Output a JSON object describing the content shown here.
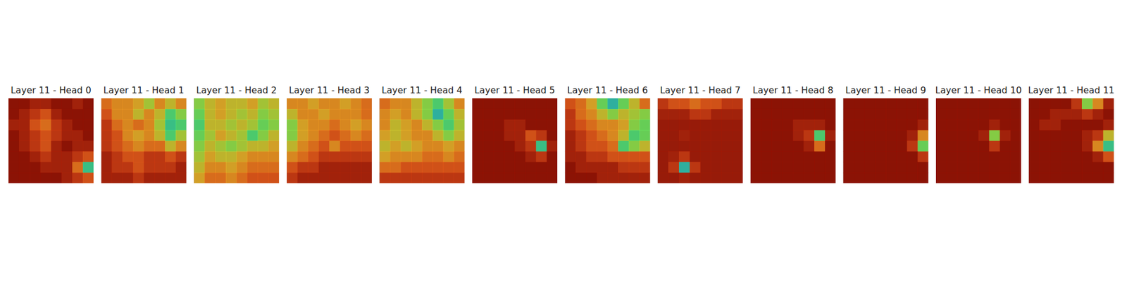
{
  "chart_data": [
    {
      "type": "heatmap",
      "title": "Layer 11 - Head 0",
      "tick_labels": false,
      "zlim": [
        0,
        1
      ],
      "z": [
        [
          0.95,
          0.95,
          0.9,
          0.9,
          0.95,
          0.95,
          0.9,
          0.95
        ],
        [
          0.95,
          0.9,
          0.85,
          0.8,
          0.9,
          0.95,
          0.95,
          0.95
        ],
        [
          0.9,
          0.9,
          0.8,
          0.75,
          0.85,
          0.9,
          0.95,
          0.95
        ],
        [
          0.95,
          0.9,
          0.85,
          0.8,
          0.85,
          0.9,
          0.9,
          0.95
        ],
        [
          0.95,
          0.9,
          0.85,
          0.8,
          0.9,
          0.95,
          0.9,
          0.9
        ],
        [
          0.95,
          0.95,
          0.9,
          0.85,
          0.9,
          0.9,
          0.85,
          0.8
        ],
        [
          0.95,
          0.95,
          0.95,
          0.9,
          0.9,
          0.9,
          0.75,
          0.35
        ],
        [
          0.95,
          0.95,
          0.95,
          0.95,
          0.95,
          0.9,
          0.85,
          0.8
        ]
      ]
    },
    {
      "type": "heatmap",
      "title": "Layer 11 - Head 1",
      "tick_labels": false,
      "zlim": [
        0,
        1
      ],
      "z": [
        [
          0.75,
          0.7,
          0.7,
          0.65,
          0.55,
          0.7,
          0.6,
          0.7
        ],
        [
          0.8,
          0.7,
          0.7,
          0.6,
          0.7,
          0.6,
          0.4,
          0.5
        ],
        [
          0.85,
          0.75,
          0.7,
          0.75,
          0.7,
          0.55,
          0.35,
          0.4
        ],
        [
          0.85,
          0.8,
          0.7,
          0.65,
          0.7,
          0.6,
          0.4,
          0.55
        ],
        [
          0.85,
          0.8,
          0.75,
          0.7,
          0.75,
          0.75,
          0.6,
          0.7
        ],
        [
          0.9,
          0.85,
          0.8,
          0.8,
          0.85,
          0.85,
          0.8,
          0.85
        ],
        [
          0.9,
          0.85,
          0.85,
          0.8,
          0.85,
          0.85,
          0.85,
          0.9
        ],
        [
          0.9,
          0.9,
          0.9,
          0.85,
          0.9,
          0.9,
          0.9,
          0.9
        ]
      ]
    },
    {
      "type": "heatmap",
      "title": "Layer 11 - Head 2",
      "tick_labels": false,
      "zlim": [
        0,
        1
      ],
      "z": [
        [
          0.5,
          0.6,
          0.65,
          0.6,
          0.6,
          0.65,
          0.55,
          0.6
        ],
        [
          0.45,
          0.6,
          0.65,
          0.6,
          0.55,
          0.6,
          0.5,
          0.55
        ],
        [
          0.4,
          0.6,
          0.6,
          0.55,
          0.6,
          0.55,
          0.45,
          0.5
        ],
        [
          0.45,
          0.55,
          0.65,
          0.6,
          0.55,
          0.4,
          0.5,
          0.6
        ],
        [
          0.5,
          0.6,
          0.55,
          0.5,
          0.55,
          0.6,
          0.6,
          0.65
        ],
        [
          0.55,
          0.65,
          0.6,
          0.6,
          0.65,
          0.7,
          0.7,
          0.7
        ],
        [
          0.6,
          0.7,
          0.7,
          0.65,
          0.7,
          0.75,
          0.75,
          0.75
        ],
        [
          0.65,
          0.75,
          0.75,
          0.7,
          0.75,
          0.8,
          0.8,
          0.8
        ]
      ]
    },
    {
      "type": "heatmap",
      "title": "Layer 11 - Head 3",
      "tick_labels": false,
      "zlim": [
        0,
        1
      ],
      "z": [
        [
          0.7,
          0.7,
          0.65,
          0.7,
          0.7,
          0.65,
          0.7,
          0.75
        ],
        [
          0.6,
          0.7,
          0.7,
          0.65,
          0.7,
          0.7,
          0.7,
          0.75
        ],
        [
          0.5,
          0.65,
          0.7,
          0.7,
          0.75,
          0.7,
          0.65,
          0.7
        ],
        [
          0.5,
          0.65,
          0.7,
          0.75,
          0.8,
          0.75,
          0.7,
          0.75
        ],
        [
          0.6,
          0.7,
          0.75,
          0.8,
          0.7,
          0.8,
          0.8,
          0.8
        ],
        [
          0.7,
          0.75,
          0.8,
          0.85,
          0.85,
          0.85,
          0.85,
          0.85
        ],
        [
          0.8,
          0.85,
          0.85,
          0.9,
          0.9,
          0.9,
          0.9,
          0.9
        ],
        [
          0.85,
          0.9,
          0.9,
          0.9,
          0.9,
          0.9,
          0.9,
          0.9
        ]
      ]
    },
    {
      "type": "heatmap",
      "title": "Layer 11 - Head 4",
      "tick_labels": false,
      "zlim": [
        0,
        1
      ],
      "z": [
        [
          0.75,
          0.7,
          0.7,
          0.6,
          0.5,
          0.4,
          0.55,
          0.7
        ],
        [
          0.7,
          0.65,
          0.7,
          0.6,
          0.5,
          0.3,
          0.45,
          0.6
        ],
        [
          0.7,
          0.6,
          0.65,
          0.7,
          0.6,
          0.5,
          0.4,
          0.55
        ],
        [
          0.65,
          0.6,
          0.65,
          0.7,
          0.7,
          0.6,
          0.5,
          0.6
        ],
        [
          0.6,
          0.65,
          0.6,
          0.65,
          0.7,
          0.7,
          0.65,
          0.7
        ],
        [
          0.65,
          0.7,
          0.7,
          0.7,
          0.75,
          0.75,
          0.7,
          0.75
        ],
        [
          0.75,
          0.75,
          0.8,
          0.8,
          0.8,
          0.8,
          0.8,
          0.8
        ],
        [
          0.85,
          0.85,
          0.85,
          0.85,
          0.85,
          0.85,
          0.85,
          0.85
        ]
      ]
    },
    {
      "type": "heatmap",
      "title": "Layer 11 - Head 5",
      "tick_labels": false,
      "zlim": [
        0,
        1
      ],
      "z": [
        [
          0.95,
          0.95,
          0.95,
          0.95,
          0.95,
          0.95,
          0.95,
          0.95
        ],
        [
          0.95,
          0.95,
          0.95,
          0.95,
          0.95,
          0.95,
          0.95,
          0.95
        ],
        [
          0.95,
          0.95,
          0.95,
          0.9,
          0.9,
          0.95,
          0.95,
          0.95
        ],
        [
          0.95,
          0.95,
          0.95,
          0.9,
          0.9,
          0.8,
          0.85,
          0.95
        ],
        [
          0.95,
          0.95,
          0.95,
          0.95,
          0.9,
          0.85,
          0.35,
          0.9
        ],
        [
          0.95,
          0.95,
          0.95,
          0.95,
          0.95,
          0.9,
          0.85,
          0.95
        ],
        [
          0.95,
          0.95,
          0.95,
          0.95,
          0.95,
          0.95,
          0.95,
          0.95
        ],
        [
          0.95,
          0.95,
          0.95,
          0.95,
          0.95,
          0.95,
          0.95,
          0.95
        ]
      ]
    },
    {
      "type": "heatmap",
      "title": "Layer 11 - Head 6",
      "tick_labels": false,
      "zlim": [
        0,
        1
      ],
      "z": [
        [
          0.8,
          0.75,
          0.65,
          0.45,
          0.3,
          0.45,
          0.6,
          0.75
        ],
        [
          0.85,
          0.75,
          0.7,
          0.6,
          0.5,
          0.6,
          0.55,
          0.5
        ],
        [
          0.85,
          0.8,
          0.75,
          0.7,
          0.7,
          0.65,
          0.5,
          0.45
        ],
        [
          0.9,
          0.85,
          0.8,
          0.75,
          0.7,
          0.6,
          0.4,
          0.45
        ],
        [
          0.9,
          0.85,
          0.8,
          0.8,
          0.75,
          0.4,
          0.5,
          0.6
        ],
        [
          0.9,
          0.9,
          0.85,
          0.85,
          0.8,
          0.8,
          0.8,
          0.8
        ],
        [
          0.95,
          0.9,
          0.9,
          0.9,
          0.9,
          0.85,
          0.85,
          0.85
        ],
        [
          0.95,
          0.95,
          0.95,
          0.9,
          0.9,
          0.9,
          0.9,
          0.9
        ]
      ]
    },
    {
      "type": "heatmap",
      "title": "Layer 11 - Head 7",
      "tick_labels": false,
      "zlim": [
        0,
        1
      ],
      "z": [
        [
          0.85,
          0.8,
          0.8,
          0.75,
          0.8,
          0.8,
          0.85,
          0.85
        ],
        [
          0.9,
          0.9,
          0.9,
          0.85,
          0.85,
          0.9,
          0.9,
          0.9
        ],
        [
          0.92,
          0.92,
          0.92,
          0.92,
          0.92,
          0.92,
          0.92,
          0.92
        ],
        [
          0.92,
          0.92,
          0.9,
          0.92,
          0.92,
          0.92,
          0.92,
          0.92
        ],
        [
          0.92,
          0.92,
          0.92,
          0.92,
          0.92,
          0.92,
          0.92,
          0.92
        ],
        [
          0.92,
          0.9,
          0.85,
          0.92,
          0.92,
          0.92,
          0.92,
          0.92
        ],
        [
          0.92,
          0.85,
          0.3,
          0.85,
          0.92,
          0.92,
          0.92,
          0.92
        ],
        [
          0.92,
          0.92,
          0.9,
          0.92,
          0.92,
          0.92,
          0.92,
          0.92
        ]
      ]
    },
    {
      "type": "heatmap",
      "title": "Layer 11 - Head 8",
      "tick_labels": false,
      "zlim": [
        0,
        1
      ],
      "z": [
        [
          0.95,
          0.95,
          0.95,
          0.95,
          0.95,
          0.95,
          0.95,
          0.95
        ],
        [
          0.95,
          0.95,
          0.95,
          0.95,
          0.95,
          0.95,
          0.95,
          0.95
        ],
        [
          0.95,
          0.95,
          0.95,
          0.95,
          0.9,
          0.9,
          0.9,
          0.95
        ],
        [
          0.95,
          0.95,
          0.95,
          0.95,
          0.9,
          0.85,
          0.4,
          0.9
        ],
        [
          0.95,
          0.95,
          0.95,
          0.95,
          0.95,
          0.9,
          0.75,
          0.95
        ],
        [
          0.95,
          0.95,
          0.95,
          0.95,
          0.95,
          0.95,
          0.95,
          0.95
        ],
        [
          0.95,
          0.95,
          0.95,
          0.95,
          0.95,
          0.95,
          0.95,
          0.95
        ],
        [
          0.95,
          0.95,
          0.95,
          0.95,
          0.95,
          0.95,
          0.95,
          0.95
        ]
      ]
    },
    {
      "type": "heatmap",
      "title": "Layer 11 - Head 9",
      "tick_labels": false,
      "zlim": [
        0,
        1
      ],
      "z": [
        [
          0.95,
          0.95,
          0.95,
          0.95,
          0.95,
          0.95,
          0.95,
          0.95
        ],
        [
          0.95,
          0.95,
          0.95,
          0.95,
          0.95,
          0.95,
          0.95,
          0.95
        ],
        [
          0.95,
          0.95,
          0.95,
          0.95,
          0.95,
          0.95,
          0.95,
          0.9
        ],
        [
          0.95,
          0.95,
          0.95,
          0.95,
          0.95,
          0.95,
          0.9,
          0.7
        ],
        [
          0.95,
          0.95,
          0.95,
          0.95,
          0.95,
          0.95,
          0.85,
          0.45
        ],
        [
          0.95,
          0.95,
          0.95,
          0.95,
          0.95,
          0.95,
          0.95,
          0.85
        ],
        [
          0.95,
          0.95,
          0.95,
          0.95,
          0.95,
          0.95,
          0.95,
          0.95
        ],
        [
          0.95,
          0.95,
          0.95,
          0.95,
          0.95,
          0.95,
          0.95,
          0.95
        ]
      ]
    },
    {
      "type": "heatmap",
      "title": "Layer 11 - Head 10",
      "tick_labels": false,
      "zlim": [
        0,
        1
      ],
      "z": [
        [
          0.95,
          0.95,
          0.95,
          0.95,
          0.95,
          0.95,
          0.95,
          0.95
        ],
        [
          0.95,
          0.95,
          0.95,
          0.95,
          0.95,
          0.95,
          0.95,
          0.95
        ],
        [
          0.95,
          0.95,
          0.95,
          0.95,
          0.95,
          0.9,
          0.95,
          0.95
        ],
        [
          0.95,
          0.95,
          0.95,
          0.95,
          0.9,
          0.5,
          0.9,
          0.95
        ],
        [
          0.95,
          0.95,
          0.95,
          0.95,
          0.95,
          0.85,
          0.95,
          0.95
        ],
        [
          0.95,
          0.95,
          0.95,
          0.95,
          0.95,
          0.95,
          0.95,
          0.95
        ],
        [
          0.95,
          0.95,
          0.95,
          0.95,
          0.95,
          0.95,
          0.95,
          0.95
        ],
        [
          0.95,
          0.95,
          0.95,
          0.95,
          0.95,
          0.95,
          0.95,
          0.95
        ]
      ]
    },
    {
      "type": "heatmap",
      "title": "Layer 11 - Head 11",
      "tick_labels": false,
      "zlim": [
        0,
        1
      ],
      "z": [
        [
          0.95,
          0.95,
          0.95,
          0.95,
          0.85,
          0.5,
          0.7,
          0.9
        ],
        [
          0.95,
          0.95,
          0.9,
          0.9,
          0.9,
          0.85,
          0.9,
          0.95
        ],
        [
          0.95,
          0.9,
          0.9,
          0.95,
          0.95,
          0.95,
          0.95,
          0.9
        ],
        [
          0.95,
          0.95,
          0.95,
          0.95,
          0.95,
          0.9,
          0.85,
          0.6
        ],
        [
          0.95,
          0.95,
          0.95,
          0.95,
          0.95,
          0.9,
          0.7,
          0.35
        ],
        [
          0.95,
          0.95,
          0.95,
          0.95,
          0.95,
          0.95,
          0.9,
          0.8
        ],
        [
          0.95,
          0.95,
          0.95,
          0.95,
          0.95,
          0.95,
          0.95,
          0.95
        ],
        [
          0.95,
          0.95,
          0.95,
          0.95,
          0.95,
          0.95,
          0.95,
          0.95
        ]
      ]
    }
  ]
}
